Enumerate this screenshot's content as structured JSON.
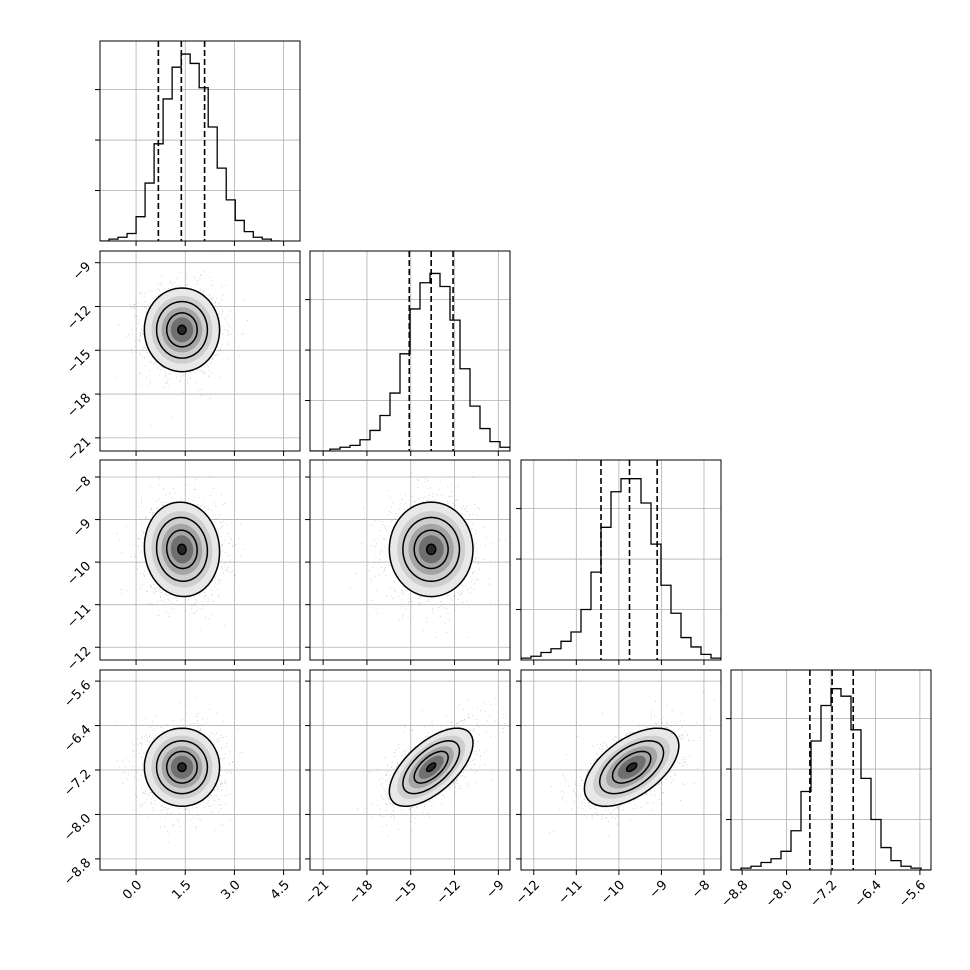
{
  "chart_data": {
    "type": "corner",
    "grid": true,
    "xlabel": "",
    "ylabel": "",
    "params": [
      {
        "range": [
          -1.1,
          5.0
        ],
        "ticks": [
          0.0,
          1.5,
          3.0,
          4.5
        ],
        "tick_labels": [
          "0.0",
          "1.5",
          "3.0",
          "4.5"
        ],
        "mean": 1.4,
        "sd": 0.62,
        "quantiles": [
          0.68,
          1.38,
          2.09
        ],
        "hist_edges": [
          -1.1,
          4.4
        ],
        "hist_counts": [
          0.0,
          0.01,
          0.02,
          0.04,
          0.13,
          0.31,
          0.52,
          0.76,
          0.93,
          1.0,
          0.95,
          0.82,
          0.61,
          0.39,
          0.22,
          0.11,
          0.05,
          0.02,
          0.01,
          0.0
        ]
      },
      {
        "range": [
          -21.9,
          -8.2
        ],
        "ticks": [
          -21,
          -18,
          -15,
          -12,
          -9
        ],
        "tick_labels": [
          "−21",
          "−18",
          "−15",
          "−12",
          "−9"
        ],
        "mean": -13.6,
        "sd": 1.55,
        "quantiles": [
          -15.1,
          -13.6,
          -12.1
        ],
        "hist_edges": [
          -21.9,
          -8.2
        ],
        "hist_counts": [
          0.0,
          0.0,
          0.01,
          0.02,
          0.03,
          0.06,
          0.11,
          0.19,
          0.31,
          0.52,
          0.76,
          0.9,
          0.95,
          0.88,
          0.7,
          0.44,
          0.24,
          0.12,
          0.05,
          0.02
        ]
      },
      {
        "range": [
          -12.3,
          -7.6
        ],
        "ticks": [
          -12,
          -11,
          -10,
          -9,
          -8
        ],
        "tick_labels": [
          "−12",
          "−11",
          "−10",
          "−9",
          "−8"
        ],
        "mean": -9.7,
        "sd": 0.6,
        "quantiles": [
          -10.42,
          -9.75,
          -9.1
        ],
        "hist_edges": [
          -12.3,
          -7.6
        ],
        "hist_counts": [
          0.01,
          0.02,
          0.04,
          0.06,
          0.1,
          0.15,
          0.27,
          0.47,
          0.71,
          0.9,
          0.97,
          0.97,
          0.84,
          0.62,
          0.4,
          0.25,
          0.12,
          0.07,
          0.03,
          0.01
        ]
      },
      {
        "range": [
          -9.0,
          -5.4
        ],
        "ticks": [
          -8.8,
          -8.0,
          -7.2,
          -6.4,
          -5.6
        ],
        "tick_labels": [
          "−8.8",
          "−8.0",
          "−7.2",
          "−6.4",
          "−5.6"
        ],
        "mean": -7.15,
        "sd": 0.38,
        "quantiles": [
          -7.58,
          -7.18,
          -6.8
        ],
        "hist_edges": [
          -9.0,
          -5.4
        ],
        "hist_counts": [
          0.0,
          0.01,
          0.02,
          0.04,
          0.06,
          0.1,
          0.21,
          0.42,
          0.69,
          0.88,
          0.97,
          0.93,
          0.75,
          0.49,
          0.27,
          0.12,
          0.05,
          0.02,
          0.01,
          0.0
        ]
      }
    ],
    "correlations": [
      [
        1.0,
        0.0,
        -0.05,
        0.0
      ],
      [
        0.0,
        1.0,
        0.0,
        0.62
      ],
      [
        -0.05,
        0.0,
        1.0,
        0.55
      ],
      [
        0.0,
        0.62,
        0.55,
        1.0
      ]
    ],
    "contour_levels_sigma": [
      0.5,
      1.0,
      1.5
    ]
  }
}
